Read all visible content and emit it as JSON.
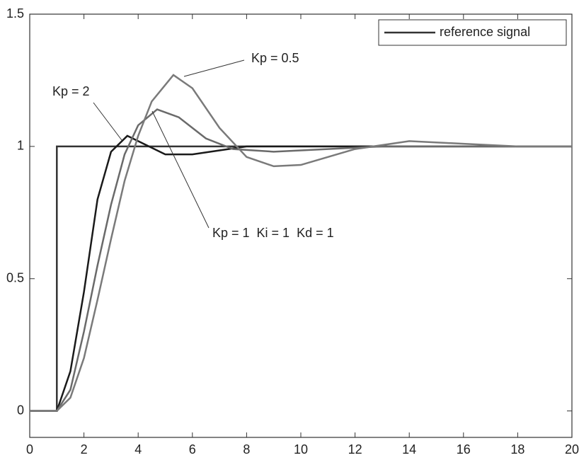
{
  "chart_data": {
    "type": "line",
    "xlim": [
      0,
      20
    ],
    "ylim": [
      -0.1,
      1.5
    ],
    "xticks": [
      0,
      2,
      4,
      6,
      8,
      10,
      12,
      14,
      16,
      18,
      20
    ],
    "yticks": [
      0,
      0.5,
      1,
      1.5
    ],
    "grid": false,
    "legend": "top-right",
    "series": [
      {
        "name": "reference signal",
        "color": "#333333",
        "x": [
          0,
          1,
          1,
          20
        ],
        "values": [
          0,
          0,
          1,
          1
        ]
      },
      {
        "color": "#1a1a1a",
        "x": [
          0,
          1,
          1.5,
          2,
          2.5,
          3,
          3.6,
          4,
          5,
          6,
          7,
          8,
          10,
          20
        ],
        "values": [
          0,
          0,
          0.15,
          0.45,
          0.8,
          0.98,
          1.04,
          1.02,
          0.97,
          0.97,
          0.985,
          1.0,
          1.0,
          1.0
        ]
      },
      {
        "color": "#6a6a6a",
        "x": [
          0,
          1,
          1.5,
          2,
          2.5,
          3,
          3.5,
          4,
          4.7,
          5.5,
          6.5,
          7.5,
          9,
          11,
          13,
          20
        ],
        "values": [
          0,
          0,
          0.08,
          0.3,
          0.55,
          0.78,
          0.97,
          1.08,
          1.14,
          1.11,
          1.03,
          0.99,
          0.98,
          0.99,
          1.0,
          1.0
        ]
      },
      {
        "color": "#7a7a7a",
        "x": [
          0,
          1,
          1.5,
          2,
          2.5,
          3,
          3.5,
          4,
          4.5,
          5.3,
          6,
          7,
          8,
          9,
          10,
          11,
          12,
          14,
          16,
          18,
          20
        ],
        "values": [
          0,
          0,
          0.05,
          0.2,
          0.42,
          0.65,
          0.87,
          1.04,
          1.17,
          1.27,
          1.22,
          1.07,
          0.96,
          0.925,
          0.93,
          0.96,
          0.99,
          1.02,
          1.01,
          1.0,
          1.0
        ]
      }
    ],
    "annotations": [
      "Kp = 0.5",
      "Kp = 2",
      "Kp = 1  Ki = 1  Kd = 1"
    ]
  }
}
